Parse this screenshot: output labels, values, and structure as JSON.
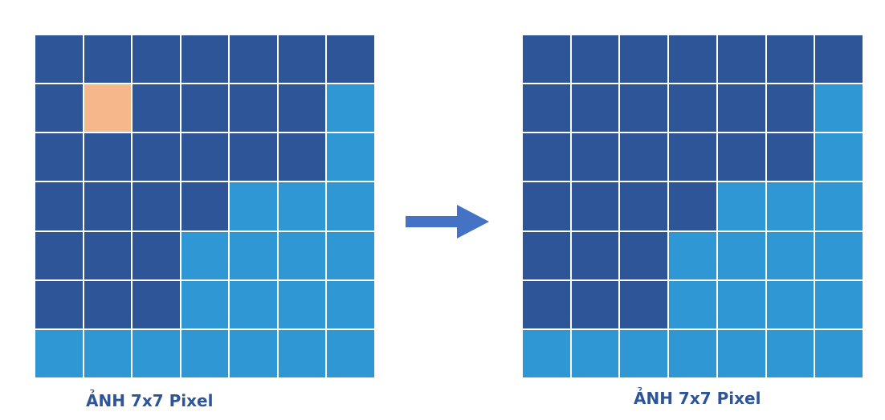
{
  "colors": {
    "dark_blue": "#2e5597",
    "light_blue": "#2f98d4",
    "orange": "#f6b78a",
    "caption": "#2e5597",
    "arrow": "#4472c4"
  },
  "left_image": {
    "caption": "ẢNH 7x7 Pixel",
    "rows": [
      [
        "D",
        "D",
        "D",
        "D",
        "D",
        "D",
        "D"
      ],
      [
        "D",
        "O",
        "D",
        "D",
        "D",
        "D",
        "L"
      ],
      [
        "D",
        "D",
        "D",
        "D",
        "D",
        "D",
        "L"
      ],
      [
        "D",
        "D",
        "D",
        "D",
        "L",
        "L",
        "L"
      ],
      [
        "D",
        "D",
        "D",
        "L",
        "L",
        "L",
        "L"
      ],
      [
        "D",
        "D",
        "D",
        "L",
        "L",
        "L",
        "L"
      ],
      [
        "L",
        "L",
        "L",
        "L",
        "L",
        "L",
        "L"
      ]
    ]
  },
  "right_image": {
    "caption": "ẢNH 7x7 Pixel",
    "rows": [
      [
        "D",
        "D",
        "D",
        "D",
        "D",
        "D",
        "D"
      ],
      [
        "D",
        "D",
        "D",
        "D",
        "D",
        "D",
        "L"
      ],
      [
        "D",
        "D",
        "D",
        "D",
        "D",
        "D",
        "L"
      ],
      [
        "D",
        "D",
        "D",
        "D",
        "L",
        "L",
        "L"
      ],
      [
        "D",
        "D",
        "D",
        "L",
        "L",
        "L",
        "L"
      ],
      [
        "D",
        "D",
        "D",
        "L",
        "L",
        "L",
        "L"
      ],
      [
        "L",
        "L",
        "L",
        "L",
        "L",
        "L",
        "L"
      ]
    ]
  },
  "arrow": {
    "icon": "right-arrow-icon"
  }
}
